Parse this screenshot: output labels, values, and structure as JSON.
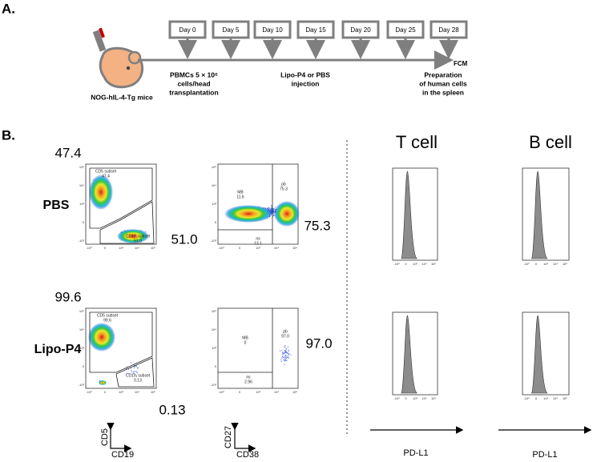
{
  "panel_a": {
    "label": "A.",
    "days": [
      "Day 0",
      "Day 5",
      "Day 10",
      "Day 15",
      "Day 20",
      "Day 25",
      "Day 28"
    ],
    "mouse": "NOG-hIL-4-Tg mice",
    "transplant": [
      "PBMCs 5 × 10⁶",
      "cells/head",
      "transplantation"
    ],
    "injection": [
      "Lipo-P4 or PBS",
      "injection"
    ],
    "preparation": [
      "Preparation",
      "of human cells",
      "in the spleen"
    ],
    "readout": "FCM"
  },
  "panel_b": {
    "label": "B.",
    "columns": [
      "T cell",
      "B cell"
    ],
    "rows": [
      {
        "name": "PBS",
        "cd5_subset": {
          "label": "CD5 subset",
          "value": "47.4"
        },
        "cd19_subset": {
          "label": "CD19, subset",
          "value": "51.0"
        },
        "mb": {
          "label": "MB",
          "value": "11.6"
        },
        "pb": {
          "label": "pb",
          "value": "75.3"
        },
        "ns": {
          "label": "ns",
          "value": "13.1"
        }
      },
      {
        "name": "Lipo-P4",
        "cd5_subset": {
          "label": "CD5 subset",
          "value": "99.6"
        },
        "cd19_subset": {
          "label": "CD19, subset",
          "value": "0.13"
        },
        "mb": {
          "label": "MB",
          "value": "0"
        },
        "pb": {
          "label": "pb",
          "value": "97.0"
        },
        "ns": {
          "label": "ns",
          "value": "2.96"
        }
      }
    ],
    "scatter_ticks": [
      "-10³",
      "0",
      "10³",
      "10⁴",
      "10⁵"
    ],
    "axes": {
      "cd5": "CD5",
      "cd19": "CD19",
      "cd27": "CD27",
      "cd38": "CD38",
      "pdl1": "PD-L1"
    }
  }
}
